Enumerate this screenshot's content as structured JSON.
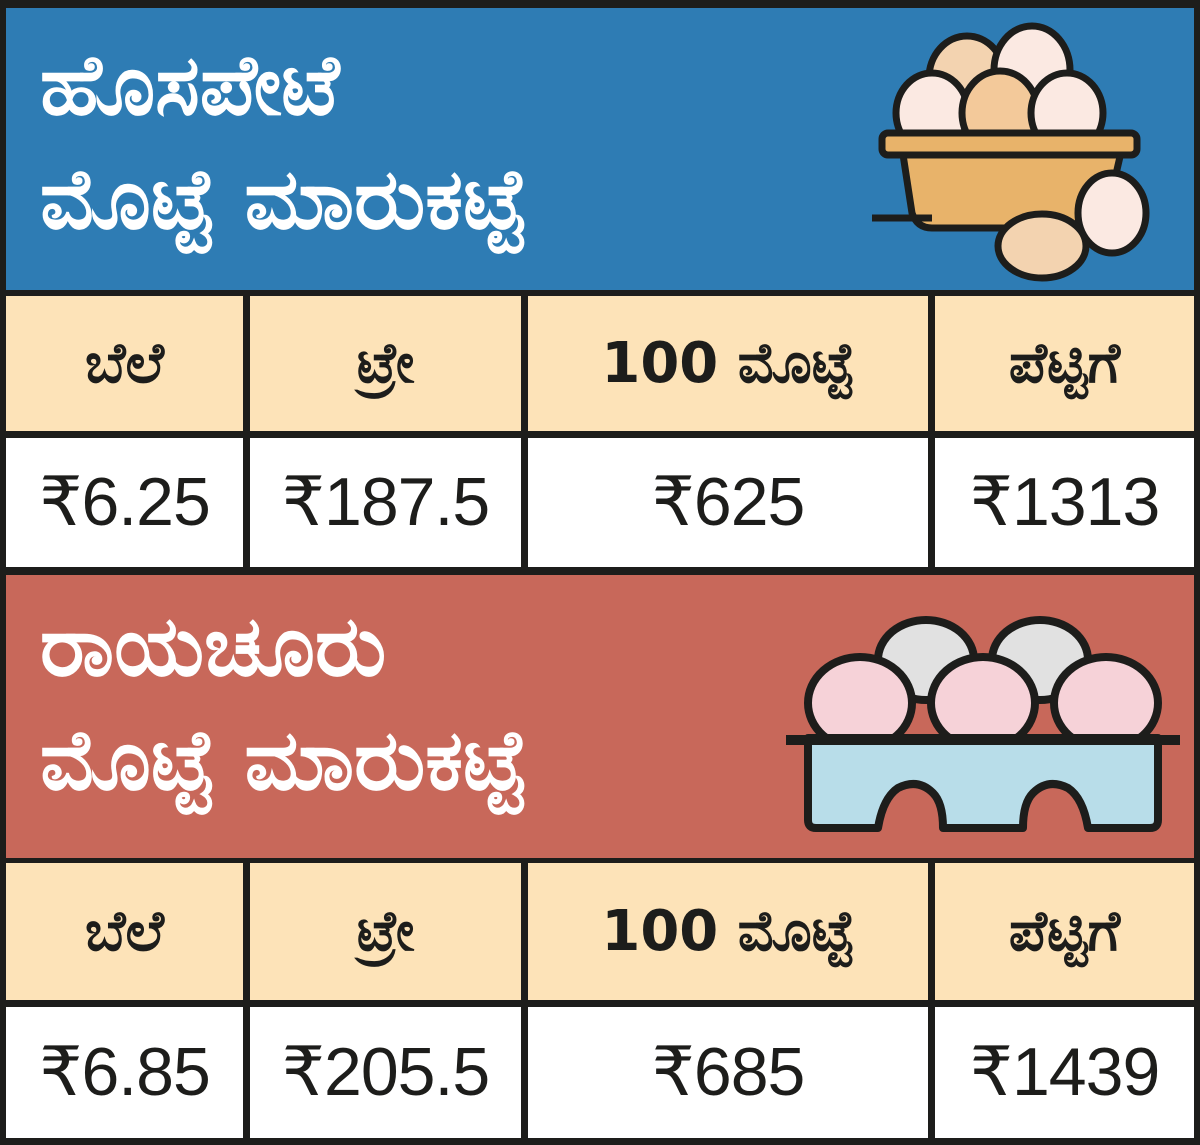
{
  "markets": [
    {
      "title_line1": "ಹೊಸಪೇಟೆ",
      "title_line2": "ಮೊಟ್ಟೆ ಮಾರುಕಟ್ಟೆ",
      "header_color": "#2e7cb4",
      "icon": "egg-basket-icon",
      "columns": [
        "ಬೆಲೆ",
        "ಟ್ರೇ",
        "100 ಮೊಟ್ಟೆ",
        "ಪೆಟ್ಟಿಗೆ"
      ],
      "values": [
        "₹6.25",
        "₹187.5",
        "₹625",
        "₹1313"
      ]
    },
    {
      "title_line1": "ರಾಯಚೂರು",
      "title_line2": "ಮೊಟ್ಟೆ ಮಾರುಕಟ್ಟೆ",
      "header_color": "#c8685a",
      "icon": "egg-carton-icon",
      "columns": [
        "ಬೆಲೆ",
        "ಟ್ರೇ",
        "100 ಮೊಟ್ಟೆ",
        "ಪೆಟ್ಟಿಗೆ"
      ],
      "values": [
        "₹6.85",
        "₹205.5",
        "₹685",
        "₹1439"
      ]
    }
  ],
  "colors": {
    "label_cell_bg": "#fde3b8",
    "value_cell_bg": "#ffffff",
    "border": "#1d1d1b"
  }
}
